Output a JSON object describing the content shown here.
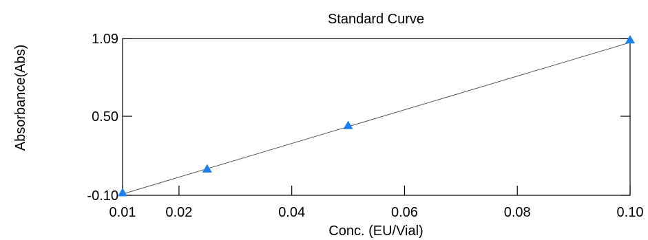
{
  "chart_data": {
    "type": "scatter",
    "title": "Standard Curve",
    "xlabel": "Conc. (EU/Vial)",
    "ylabel": "Absorbance(Abs)",
    "xlim": [
      0.01,
      0.1
    ],
    "ylim": [
      -0.1,
      1.09
    ],
    "x_ticks": [
      0.01,
      0.02,
      0.04,
      0.06,
      0.08,
      0.1
    ],
    "x_tick_labels": [
      "0.01",
      "0.02",
      "0.04",
      "0.06",
      "0.08",
      "0.10"
    ],
    "y_ticks": [
      -0.1,
      0.5,
      1.09
    ],
    "y_tick_labels": [
      "-0.10",
      "0.50",
      "1.09"
    ],
    "grid": false,
    "series": [
      {
        "x": [
          0.01,
          0.025,
          0.05,
          0.1
        ],
        "y": [
          -0.08,
          0.1,
          0.43,
          1.08
        ],
        "marker": "triangle",
        "color": "#1a7ff0"
      }
    ],
    "fit_line": {
      "x": [
        0.01,
        0.1
      ],
      "y": [
        -0.09,
        1.06
      ],
      "color": "#555555"
    }
  }
}
